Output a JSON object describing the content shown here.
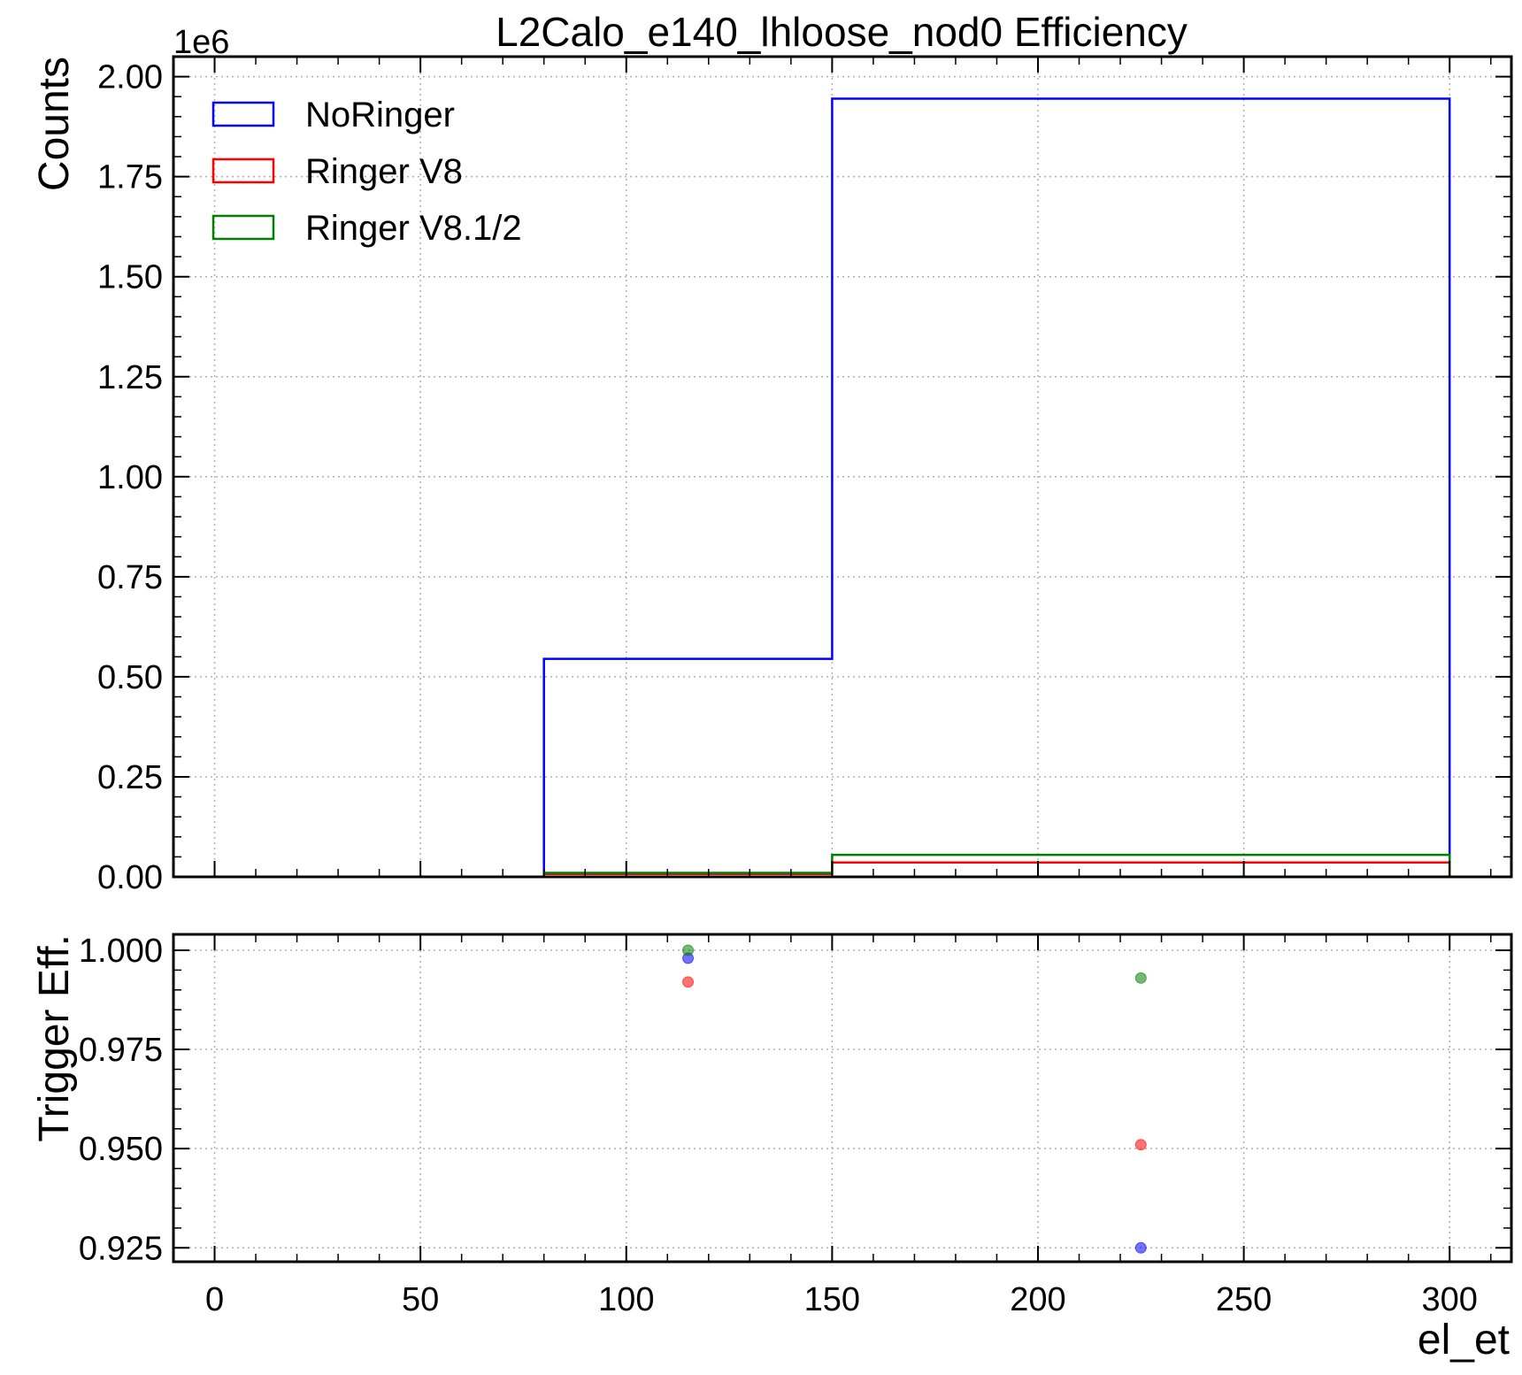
{
  "chart_data": [
    {
      "type": "histogram-step",
      "title": "L2Calo_e140_lhloose_nod0 Efficiency",
      "ylabel": "Counts",
      "y_offset_text": "1e6",
      "xlim": [
        -10,
        315
      ],
      "ylim": [
        0,
        2050000
      ],
      "yticks": [
        0,
        250000,
        500000,
        750000,
        1000000,
        1250000,
        1500000,
        1750000,
        2000000
      ],
      "ytick_labels": [
        "0.00",
        "0.25",
        "0.50",
        "0.75",
        "1.00",
        "1.25",
        "1.50",
        "1.75",
        "2.00"
      ],
      "grid": true,
      "legend_position": "top-left",
      "bin_edges": [
        0,
        80,
        150,
        300
      ],
      "series": [
        {
          "name": "NoRinger",
          "color": "#0000ff",
          "values": [
            0,
            545000,
            1945000
          ]
        },
        {
          "name": "Ringer V8",
          "color": "#ff0000",
          "values": [
            0,
            7000,
            36000
          ]
        },
        {
          "name": "Ringer V8.1/2",
          "color": "#008000",
          "values": [
            0,
            10000,
            55000
          ]
        }
      ]
    },
    {
      "type": "scatter",
      "ylabel": "Trigger Eff.",
      "xlabel": "el_et",
      "xlim": [
        -10,
        315
      ],
      "ylim": [
        0.9215,
        1.004
      ],
      "xticks": [
        0,
        50,
        100,
        150,
        200,
        250,
        300
      ],
      "xtick_labels": [
        "0",
        "50",
        "100",
        "150",
        "200",
        "250",
        "300"
      ],
      "yticks": [
        0.925,
        0.95,
        0.975,
        1.0
      ],
      "ytick_labels": [
        "0.925",
        "0.950",
        "0.975",
        "1.000"
      ],
      "grid": true,
      "series": [
        {
          "name": "NoRinger",
          "color": "#0000ff",
          "x": [
            115,
            225
          ],
          "y": [
            0.998,
            0.925
          ]
        },
        {
          "name": "Ringer V8",
          "color": "#ff0000",
          "x": [
            115,
            225
          ],
          "y": [
            0.992,
            0.951
          ]
        },
        {
          "name": "Ringer V8.1/2",
          "color": "#008000",
          "x": [
            115,
            225
          ],
          "y": [
            1.0,
            0.993
          ]
        }
      ]
    }
  ]
}
